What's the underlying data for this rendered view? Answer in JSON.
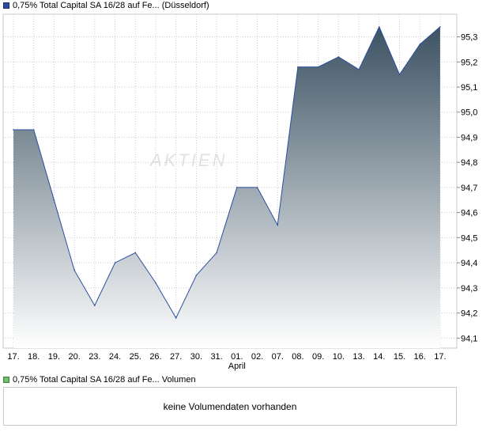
{
  "legend": {
    "price": "0,75% Total Capital SA 16/28 auf Fe... (Düsseldorf)",
    "volume": "0,75% Total Capital SA 16/28 auf Fe... Volumen"
  },
  "watermark": "AKTIEN",
  "volume_panel": {
    "message": "keine Volumendaten vorhanden"
  },
  "colors": {
    "line": "#2b4ea0",
    "fill_top": "#3c5263",
    "fill_bottom": "#ffffff",
    "grid": "#cccccc"
  },
  "chart_data": {
    "type": "area",
    "x": [
      "17.",
      "18.",
      "19.",
      "20.",
      "23.",
      "24.",
      "25.",
      "26.",
      "27.",
      "30.",
      "31.",
      "01.",
      "02.",
      "07.",
      "08.",
      "09.",
      "10.",
      "13.",
      "14.",
      "15.",
      "16.",
      "17."
    ],
    "month_labels": [
      {
        "index": 11,
        "label": "April"
      }
    ],
    "values": [
      94.93,
      94.93,
      94.65,
      94.37,
      94.23,
      94.4,
      94.44,
      94.32,
      94.18,
      94.35,
      94.44,
      94.7,
      94.7,
      94.55,
      95.18,
      95.18,
      95.22,
      95.17,
      95.34,
      95.15,
      95.27,
      95.34
    ],
    "yticks": [
      "94,1",
      "94,2",
      "94,3",
      "94,4",
      "94,5",
      "94,6",
      "94,7",
      "94,8",
      "94,9",
      "95,0",
      "95,1",
      "95,2",
      "95,3"
    ],
    "ylim": [
      94.06,
      95.39
    ],
    "grid": true
  }
}
